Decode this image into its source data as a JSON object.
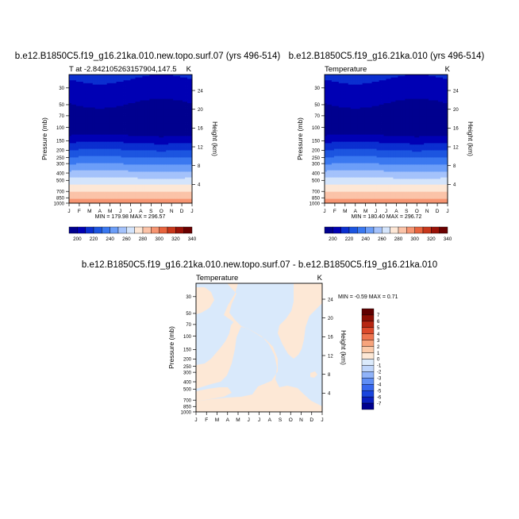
{
  "chart_data": [
    {
      "type": "heatmap",
      "panel": "left",
      "title": "b.e12.B1850C5.f19_g16.21ka.010.new.topo.surf.07 (yrs 496-514)",
      "subtitle_left": "T at -2.842105263157904,147.5",
      "units": "K",
      "xlabel": "",
      "ylabel": "Pressure (mb)",
      "ylabel_right": "Height (km)",
      "x_tick_labels": [
        "J",
        "F",
        "M",
        "A",
        "M",
        "J",
        "J",
        "A",
        "S",
        "O",
        "N",
        "D",
        "J"
      ],
      "pressure_ticks": [
        30,
        50,
        70,
        100,
        150,
        200,
        250,
        300,
        400,
        500,
        700,
        850,
        1000
      ],
      "height_ticks": [
        4,
        8,
        12,
        16,
        20,
        24
      ],
      "ylim_pressure": [
        1000,
        20
      ],
      "stats": "MIN = 179.98  MAX = 296.57",
      "levels": [
        200,
        220,
        240,
        260,
        280,
        300,
        320,
        340
      ],
      "colorbar_labels": [
        "200",
        "220",
        "240",
        "260",
        "280",
        "300",
        "320",
        "340"
      ]
    },
    {
      "type": "heatmap",
      "panel": "right",
      "title": "b.e12.B1850C5.f19_g16.21ka.010 (yrs 496-514)",
      "subtitle_left": "Temperature",
      "units": "K",
      "xlabel": "",
      "ylabel": "Pressure (mb)",
      "ylabel_right": "Height (km)",
      "x_tick_labels": [
        "J",
        "F",
        "M",
        "A",
        "M",
        "J",
        "J",
        "A",
        "S",
        "O",
        "N",
        "D",
        "J"
      ],
      "pressure_ticks": [
        30,
        50,
        70,
        100,
        150,
        200,
        250,
        300,
        400,
        500,
        700,
        850,
        1000
      ],
      "height_ticks": [
        4,
        8,
        12,
        16,
        20,
        24
      ],
      "ylim_pressure": [
        1000,
        20
      ],
      "stats": "MIN = 180.40  MAX = 296.72",
      "levels": [
        200,
        220,
        240,
        260,
        280,
        300,
        320,
        340
      ],
      "colorbar_labels": [
        "200",
        "220",
        "240",
        "260",
        "280",
        "300",
        "320",
        "340"
      ]
    },
    {
      "type": "heatmap",
      "panel": "difference",
      "title": "b.e12.B1850C5.f19_g16.21ka.010.new.topo.surf.07 - b.e12.B1850C5.f19_g16.21ka.010",
      "subtitle_left": "Temperature",
      "units": "K",
      "xlabel": "",
      "ylabel": "Pressure (mb)",
      "ylabel_right": "Height (km)",
      "x_tick_labels": [
        "J",
        "F",
        "M",
        "A",
        "M",
        "J",
        "J",
        "A",
        "S",
        "O",
        "N",
        "D",
        "J"
      ],
      "pressure_ticks": [
        30,
        50,
        70,
        100,
        150,
        200,
        250,
        300,
        400,
        500,
        700,
        850,
        1000
      ],
      "height_ticks": [
        4,
        8,
        12,
        16,
        20,
        24
      ],
      "ylim_pressure": [
        1000,
        20
      ],
      "stats": "MIN =  -0.59 MAX =   0.71",
      "levels": [
        -7,
        -6,
        -5,
        -4,
        -3,
        -2,
        -1,
        0,
        1,
        2,
        3,
        4,
        5,
        6,
        7
      ],
      "colorbar_labels": [
        "7",
        "6",
        "5",
        "4",
        "3",
        "2",
        "1",
        "0",
        "-1",
        "-2",
        "-3",
        "-4",
        "-5",
        "-6",
        "-7"
      ]
    }
  ],
  "colors": {
    "abs_scale": [
      "#00008f",
      "#0000b4",
      "#0b2fd0",
      "#1c55e0",
      "#3a78f0",
      "#6c9ef8",
      "#a4c2fb",
      "#d4e4fb",
      "#fde7d6",
      "#fbc3a8",
      "#f69572",
      "#e8643e",
      "#c8381c",
      "#9a1208",
      "#6a0000"
    ],
    "diff_scale": [
      "#00008f",
      "#0a1fbf",
      "#1a45dd",
      "#3768ee",
      "#5f8ef5",
      "#90b3f9",
      "#c0d6fb",
      "#dcebfc",
      "#fde8d6",
      "#fbcaa9",
      "#f7a47c",
      "#ee7550",
      "#dc4a2c",
      "#b62612",
      "#8c0e04",
      "#600000"
    ],
    "diff_pos_fill": "#fde8d6",
    "diff_neg_fill": "#d9e9fb"
  }
}
